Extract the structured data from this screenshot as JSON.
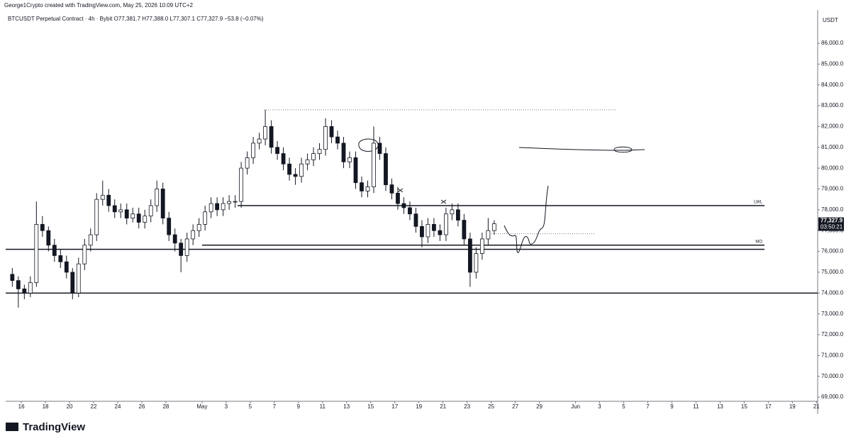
{
  "header": "George1Crypto created with TradingView.com, May 25, 2026 10:09 UTC+2",
  "symbol_line": "BTCUSDT Perpetual Contract · 4h · Bybit  O77,381.7  H77,388.0  L77,307.1  C77,327.9  −53.8 (−0.07%)",
  "currency": "USDT",
  "logo": "TradingView",
  "chart_data": {
    "type": "candlestick",
    "up_color": "#ffffff",
    "down_color": "#131722",
    "xlim": [
      14.7,
      82.1
    ],
    "ylim": [
      68800,
      87600
    ],
    "xticks": [
      16,
      18,
      20,
      22,
      24,
      26,
      28,
      {
        "value": 31,
        "label": "May"
      },
      {
        "value": 33,
        "label": "3"
      },
      {
        "value": 35,
        "label": "5"
      },
      {
        "value": 37,
        "label": "7"
      },
      {
        "value": 39,
        "label": "9"
      },
      {
        "value": 41,
        "label": "11"
      },
      {
        "value": 43,
        "label": "13"
      },
      {
        "value": 45,
        "label": "15"
      },
      {
        "value": 47,
        "label": "17"
      },
      {
        "value": 49,
        "label": "19"
      },
      {
        "value": 51,
        "label": "21"
      },
      {
        "value": 53,
        "label": "23"
      },
      {
        "value": 55,
        "label": "25"
      },
      {
        "value": 57,
        "label": "27"
      },
      {
        "value": 59,
        "label": "29"
      },
      {
        "value": 62,
        "label": "Jun"
      },
      {
        "value": 64,
        "label": "3"
      },
      {
        "value": 66,
        "label": "5"
      },
      {
        "value": 68,
        "label": "7"
      },
      {
        "value": 70,
        "label": "9"
      },
      {
        "value": 72,
        "label": "11"
      },
      {
        "value": 74,
        "label": "13"
      },
      {
        "value": 76,
        "label": "15"
      },
      {
        "value": 78,
        "label": "17"
      },
      {
        "value": 80,
        "label": "19"
      },
      {
        "value": 82,
        "label": "21"
      }
    ],
    "yticks": [
      {
        "value": 69000,
        "label": "69,000.0"
      },
      {
        "value": 70000,
        "label": "70,000.0"
      },
      {
        "value": 71000,
        "label": "71,000.0"
      },
      {
        "value": 72000,
        "label": "72,000.0"
      },
      {
        "value": 73000,
        "label": "73,000.0"
      },
      {
        "value": 74000,
        "label": "74,000.0"
      },
      {
        "value": 75000,
        "label": "75,000.0"
      },
      {
        "value": 76000,
        "label": "76,000.0"
      },
      {
        "value": 77000,
        "label": "77,000.0"
      },
      {
        "value": 78000,
        "label": "78,000.0"
      },
      {
        "value": 79000,
        "label": "79,000.0"
      },
      {
        "value": 80000,
        "label": "80,000.0"
      },
      {
        "value": 81000,
        "label": "81,000.0"
      },
      {
        "value": 82000,
        "label": "82,000.0"
      },
      {
        "value": 83000,
        "label": "83,000.0"
      },
      {
        "value": 84000,
        "label": "84,000.0"
      },
      {
        "value": 85000,
        "label": "85,000.0"
      },
      {
        "value": 86000,
        "label": "86,000.0"
      }
    ],
    "x": [
      15.25,
      15.75,
      16.25,
      16.75,
      17.25,
      17.75,
      18.25,
      18.75,
      19.25,
      19.75,
      20.25,
      20.75,
      21.25,
      21.75,
      22.25,
      22.75,
      23.25,
      23.75,
      24.25,
      24.75,
      25.25,
      25.75,
      26.25,
      26.75,
      27.25,
      27.75,
      28.25,
      28.75,
      29.25,
      29.75,
      30.25,
      30.75,
      31.25,
      31.75,
      32.25,
      32.75,
      33.25,
      33.75,
      34.25,
      34.75,
      35.25,
      35.75,
      36.25,
      36.75,
      37.25,
      37.75,
      38.25,
      38.75,
      39.25,
      39.75,
      40.25,
      40.75,
      41.25,
      41.75,
      42.25,
      42.75,
      43.25,
      43.75,
      44.25,
      44.75,
      45.25,
      45.75,
      46.25,
      46.75,
      47.25,
      47.75,
      48.25,
      48.75,
      49.25,
      49.75,
      50.25,
      50.75,
      51.25,
      51.75,
      52.25,
      52.75,
      53.25,
      53.75,
      54.25,
      54.75,
      55.25
    ],
    "ohlc": [
      [
        74900,
        75200,
        74300,
        74600
      ],
      [
        74600,
        74800,
        73300,
        74200
      ],
      [
        74200,
        74400,
        73700,
        74000
      ],
      [
        74000,
        74800,
        73800,
        74500
      ],
      [
        74500,
        78400,
        74300,
        77300
      ],
      [
        77300,
        77700,
        76700,
        77000
      ],
      [
        77000,
        77200,
        76000,
        76300
      ],
      [
        76300,
        76600,
        75500,
        75800
      ],
      [
        75800,
        76100,
        75200,
        75500
      ],
      [
        75500,
        75800,
        74700,
        75000
      ],
      [
        75000,
        75200,
        73700,
        74000
      ],
      [
        74000,
        75700,
        73800,
        75400
      ],
      [
        75400,
        76600,
        75100,
        76300
      ],
      [
        76300,
        77100,
        76000,
        76800
      ],
      [
        76800,
        78800,
        76500,
        78500
      ],
      [
        78500,
        79400,
        78200,
        78700
      ],
      [
        78700,
        79000,
        77900,
        78200
      ],
      [
        78200,
        78500,
        77600,
        77900
      ],
      [
        77900,
        78300,
        77600,
        78000
      ],
      [
        78000,
        78300,
        77300,
        77600
      ],
      [
        77600,
        78100,
        77400,
        77800
      ],
      [
        77800,
        78100,
        77100,
        77400
      ],
      [
        77400,
        78000,
        77100,
        77700
      ],
      [
        77700,
        78500,
        77400,
        78200
      ],
      [
        78200,
        79400,
        77900,
        79000
      ],
      [
        79000,
        79300,
        77300,
        77600
      ],
      [
        77600,
        77900,
        76500,
        76800
      ],
      [
        76800,
        77100,
        76000,
        76400
      ],
      [
        76400,
        76600,
        75000,
        75800
      ],
      [
        75800,
        76900,
        75500,
        76600
      ],
      [
        76600,
        77300,
        76300,
        77000
      ],
      [
        77000,
        77600,
        76700,
        77300
      ],
      [
        77300,
        78200,
        77000,
        77900
      ],
      [
        77900,
        78600,
        77600,
        78300
      ],
      [
        78300,
        78600,
        77700,
        78000
      ],
      [
        78000,
        78600,
        77700,
        78300
      ],
      [
        78300,
        78700,
        78000,
        78400
      ],
      [
        78400,
        78700,
        78100,
        78400
      ],
      [
        78400,
        80300,
        78100,
        80000
      ],
      [
        80000,
        80800,
        79700,
        80500
      ],
      [
        80500,
        81500,
        80200,
        81200
      ],
      [
        81200,
        81700,
        80900,
        81400
      ],
      [
        81400,
        82800,
        81100,
        82000
      ],
      [
        82000,
        82300,
        80700,
        81000
      ],
      [
        81000,
        81300,
        80400,
        80700
      ],
      [
        80700,
        81000,
        79900,
        80200
      ],
      [
        80200,
        80500,
        79400,
        79700
      ],
      [
        79700,
        80000,
        79200,
        79600
      ],
      [
        79600,
        80500,
        79300,
        80200
      ],
      [
        80200,
        80700,
        79900,
        80400
      ],
      [
        80400,
        81000,
        80100,
        80700
      ],
      [
        80700,
        81200,
        80400,
        80900
      ],
      [
        80900,
        82400,
        80600,
        82000
      ],
      [
        82000,
        82300,
        81200,
        81500
      ],
      [
        81500,
        81800,
        80900,
        81200
      ],
      [
        81200,
        81500,
        80000,
        80300
      ],
      [
        80300,
        80800,
        80000,
        80500
      ],
      [
        80500,
        80800,
        79000,
        79300
      ],
      [
        79300,
        79600,
        78600,
        78900
      ],
      [
        78900,
        79400,
        78600,
        79100
      ],
      [
        79100,
        82000,
        78800,
        81200
      ],
      [
        81200,
        81500,
        80400,
        80700
      ],
      [
        80700,
        81000,
        78900,
        79200
      ],
      [
        79200,
        79500,
        78500,
        78800
      ],
      [
        78800,
        79100,
        78000,
        78300
      ],
      [
        78300,
        78600,
        77800,
        78100
      ],
      [
        78100,
        78400,
        77500,
        77800
      ],
      [
        77800,
        78100,
        76900,
        77200
      ],
      [
        77200,
        77500,
        76200,
        76700
      ],
      [
        76700,
        77600,
        76400,
        77300
      ],
      [
        77300,
        77600,
        76700,
        77000
      ],
      [
        77000,
        77300,
        76500,
        76800
      ],
      [
        76800,
        78100,
        76500,
        77800
      ],
      [
        77800,
        78300,
        77500,
        78000
      ],
      [
        78000,
        78300,
        77200,
        77500
      ],
      [
        77500,
        77800,
        76300,
        76600
      ],
      [
        76600,
        76900,
        74300,
        75000
      ],
      [
        75000,
        76200,
        74700,
        75900
      ],
      [
        75900,
        76900,
        75600,
        76600
      ],
      [
        76600,
        77600,
        76300,
        77000
      ],
      [
        77000,
        77500,
        76800,
        77327.9
      ]
    ],
    "levels": [
      {
        "value": 78200,
        "label": "LWL"
      },
      {
        "value": 76300,
        "label": "MO"
      },
      {
        "value": 76100
      },
      {
        "value": 74000
      }
    ],
    "dotted_levels": [
      82800,
      76850
    ],
    "last_price": {
      "value": 77327.9,
      "label": "77,327.9"
    },
    "countdown": "03:50:21"
  }
}
